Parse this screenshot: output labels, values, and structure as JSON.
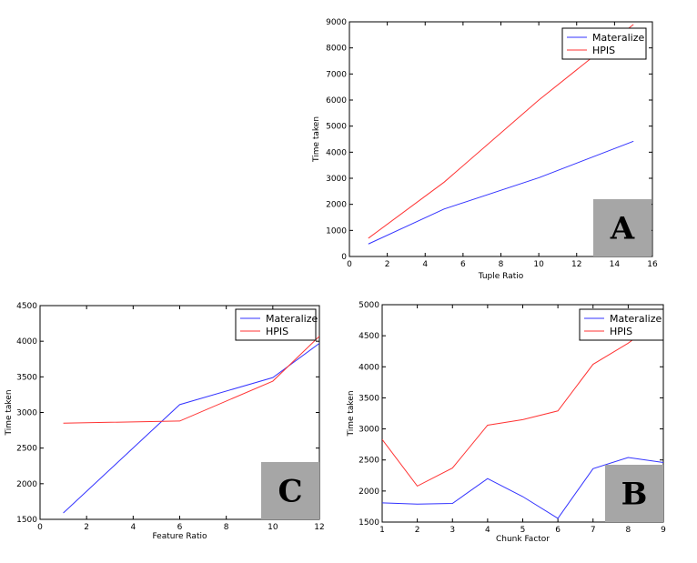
{
  "chart_data": [
    {
      "panel": "A",
      "type": "line",
      "xlabel": "Tuple Ratio",
      "ylabel": "Time taken",
      "xlim": [
        0,
        16
      ],
      "ylim": [
        0,
        9000
      ],
      "xticks": [
        0,
        2,
        4,
        6,
        8,
        10,
        12,
        14,
        16
      ],
      "yticks": [
        0,
        1000,
        2000,
        3000,
        4000,
        5000,
        6000,
        7000,
        8000,
        9000
      ],
      "legend_position": "top-right",
      "series": [
        {
          "name": "Materalize",
          "color": "#3333ff",
          "x": [
            1,
            5,
            10,
            15
          ],
          "y": [
            480,
            1820,
            3020,
            4420
          ]
        },
        {
          "name": "HPIS",
          "color": "#ff3333",
          "x": [
            1,
            5,
            10,
            15
          ],
          "y": [
            700,
            2850,
            6000,
            8900
          ]
        }
      ]
    },
    {
      "panel": "C",
      "type": "line",
      "xlabel": "Feature Ratio",
      "ylabel": "Time taken",
      "xlim": [
        0,
        12
      ],
      "ylim": [
        1500,
        4500
      ],
      "xticks": [
        0,
        2,
        4,
        6,
        8,
        10,
        12
      ],
      "yticks": [
        1500,
        2000,
        2500,
        3000,
        3500,
        4000,
        4500
      ],
      "legend_position": "top-right",
      "series": [
        {
          "name": "Materalize",
          "color": "#3333ff",
          "x": [
            1,
            6,
            10,
            12
          ],
          "y": [
            1590,
            3110,
            3490,
            3970
          ]
        },
        {
          "name": "HPIS",
          "color": "#ff3333",
          "x": [
            1,
            6,
            10,
            12
          ],
          "y": [
            2850,
            2880,
            3440,
            4070
          ]
        }
      ]
    },
    {
      "panel": "B",
      "type": "line",
      "xlabel": "Chunk Factor",
      "ylabel": "Time taken",
      "xlim": [
        1,
        9
      ],
      "ylim": [
        1500,
        5000
      ],
      "xticks": [
        1,
        2,
        3,
        4,
        5,
        6,
        7,
        8,
        9
      ],
      "yticks": [
        1500,
        2000,
        2500,
        3000,
        3500,
        4000,
        4500,
        5000
      ],
      "legend_position": "top-right",
      "series": [
        {
          "name": "Materalize",
          "color": "#3333ff",
          "x": [
            1,
            2,
            3,
            4,
            5,
            6,
            7,
            8,
            9
          ],
          "y": [
            1810,
            1790,
            1800,
            2200,
            1910,
            1560,
            2360,
            2540,
            2460
          ]
        },
        {
          "name": "HPIS",
          "color": "#ff3333",
          "x": [
            1,
            2,
            3,
            4,
            5,
            6,
            7,
            8,
            9
          ],
          "y": [
            2830,
            2080,
            2370,
            3060,
            3150,
            3290,
            4040,
            4380,
            4800
          ]
        }
      ]
    }
  ]
}
